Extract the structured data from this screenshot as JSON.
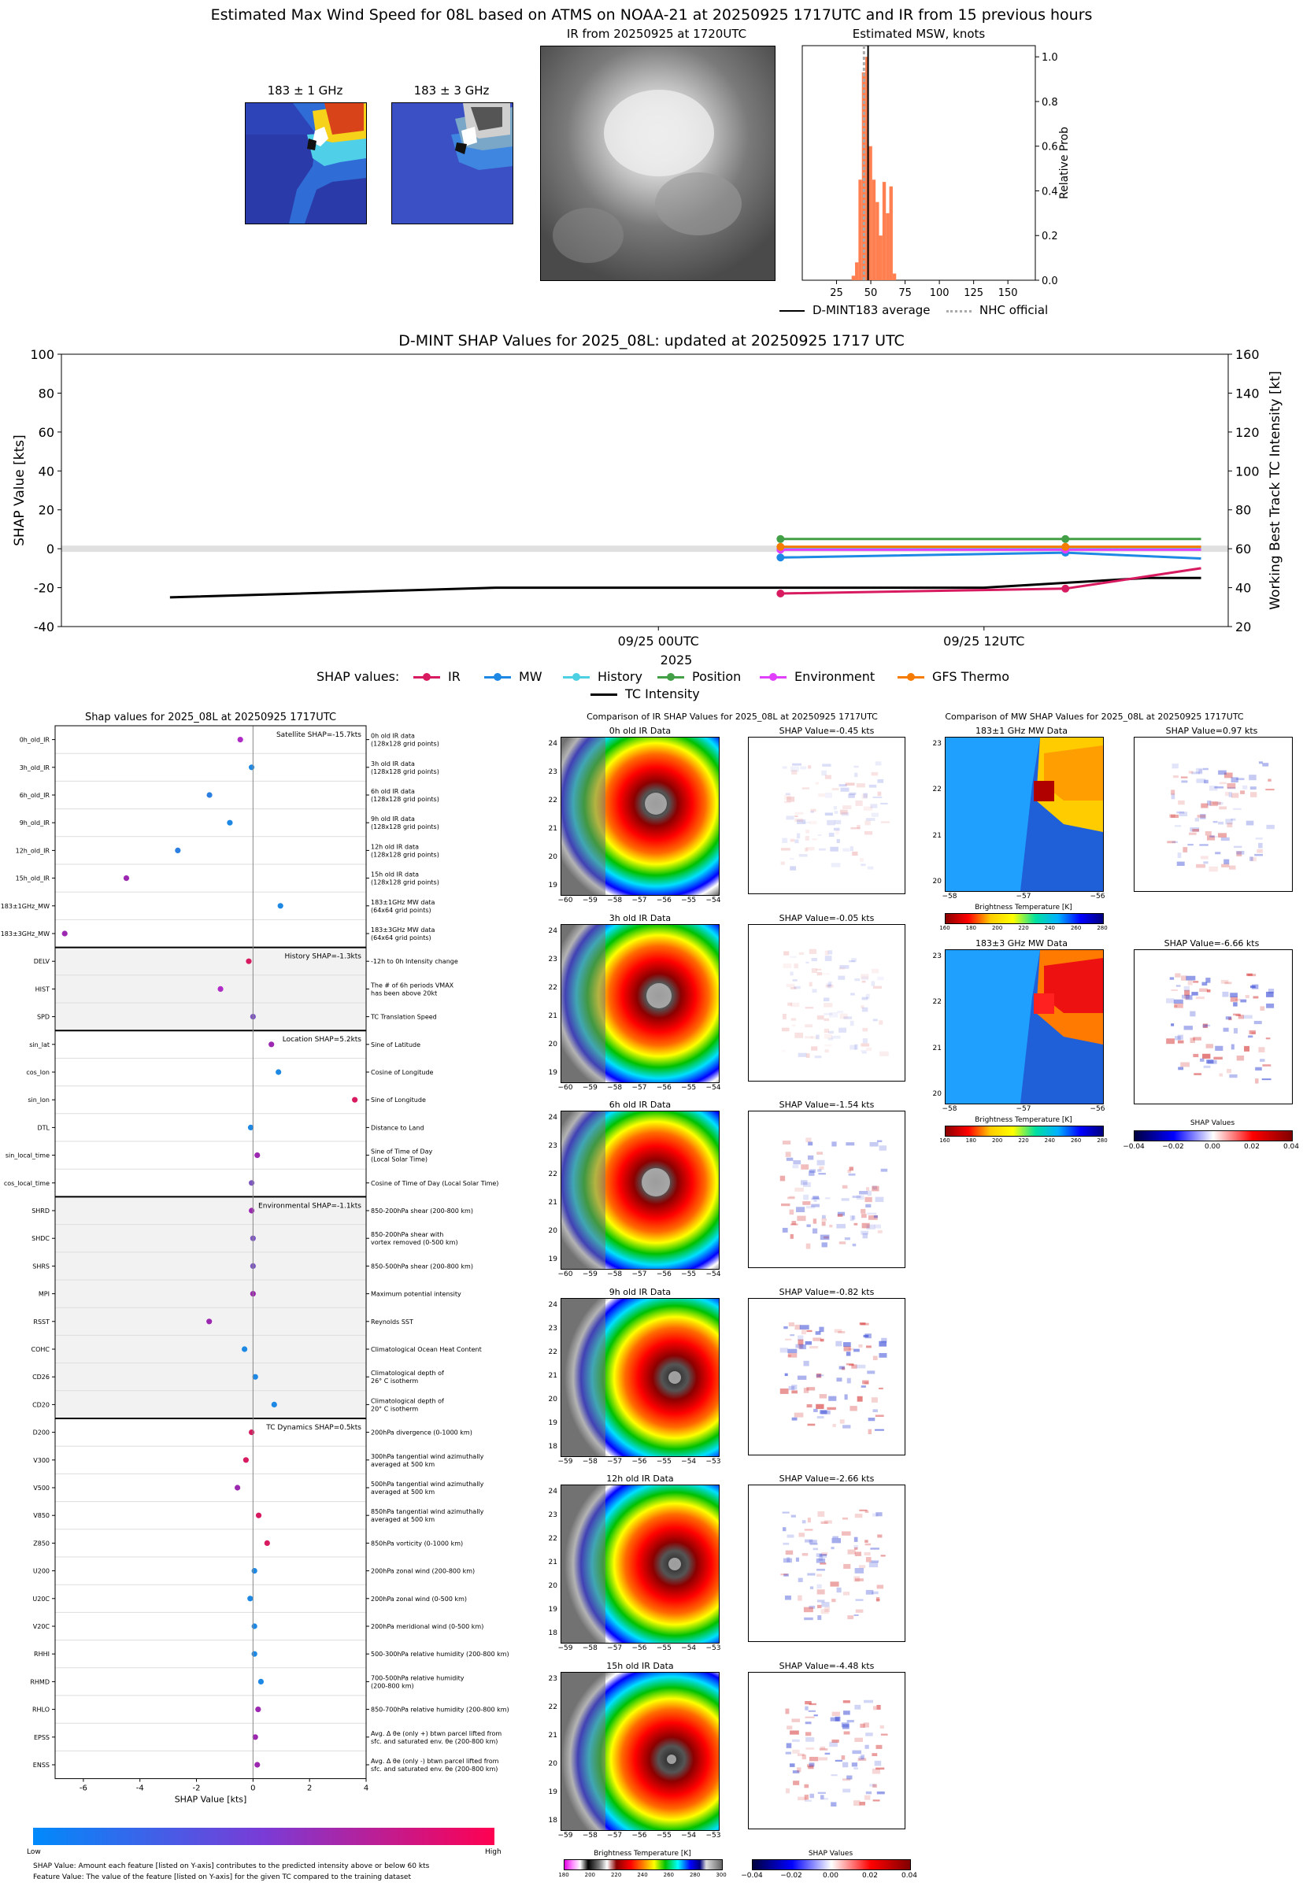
{
  "top": {
    "title": "Estimated Max Wind Speed for 08L based on ATMS on NOAA-21 at 20250925 1717UTC and IR from 15 previous hours",
    "mw1_title": "183 ± 1 GHz",
    "mw3_title": "183 ± 3 GHz",
    "ir_title": "IR from 20250925 at 1720UTC",
    "hist_title": "Estimated MSW, knots",
    "hist_ylabel": "Relative Prob",
    "hist_yticks": [
      "0.0",
      "0.2",
      "0.4",
      "0.6",
      "0.8",
      "1.0"
    ],
    "hist_xticks": [
      "25",
      "50",
      "75",
      "100",
      "125",
      "150"
    ],
    "legend_avg": "D-MINT183 average",
    "legend_nhc": "NHC official"
  },
  "chart_data": [
    {
      "type": "bar",
      "title": "Estimated MSW, knots",
      "ylabel": "Relative Prob",
      "xlim": [
        0,
        170
      ],
      "ylim": [
        0,
        1.05
      ],
      "bin_width": 2.5,
      "bins": [
        [
          36,
          0.02
        ],
        [
          38.5,
          0.08
        ],
        [
          41,
          0.45
        ],
        [
          43.5,
          0.93
        ],
        [
          46,
          1.0
        ],
        [
          48.5,
          0.6
        ],
        [
          51,
          0.45
        ],
        [
          53.5,
          0.35
        ],
        [
          56,
          0.2
        ],
        [
          58.5,
          0.44
        ],
        [
          61,
          0.3
        ],
        [
          63.5,
          0.42
        ],
        [
          66,
          0.03
        ]
      ],
      "avg_line": 48,
      "nhc_line": 45
    },
    {
      "type": "line",
      "title": "D-MINT SHAP Values for 2025_08L: updated at 20250925 1717 UTC",
      "ylabel": "SHAP Value [kts]",
      "y2label": "Working Best Track TC Intensity [kt]",
      "xlabel": "2025",
      "ylim": [
        -40,
        100
      ],
      "y2lim": [
        20,
        160
      ],
      "yticks": [
        "-40",
        "-20",
        "0",
        "20",
        "40",
        "60",
        "80",
        "100"
      ],
      "y2ticks": [
        "20",
        "40",
        "60",
        "80",
        "100",
        "120",
        "140",
        "160"
      ],
      "xticks": [
        "09/25 00UTC",
        "09/25 12UTC"
      ],
      "x_hours": [
        -18,
        20
      ],
      "legend_title": "SHAP values:",
      "series": [
        {
          "name": "IR",
          "color": "#d81b60",
          "x": [
            4.5,
            15,
            20
          ],
          "values": [
            -23,
            -20.5,
            -10
          ]
        },
        {
          "name": "MW",
          "color": "#1e88e5",
          "x": [
            4.5,
            15,
            20
          ],
          "values": [
            -4.5,
            -2,
            -5
          ]
        },
        {
          "name": "History",
          "color": "#4dd0e1",
          "x": [
            4.5,
            15,
            20
          ],
          "values": [
            0,
            0,
            0
          ]
        },
        {
          "name": "Position",
          "color": "#43a047",
          "x": [
            4.5,
            15,
            20
          ],
          "values": [
            5,
            5,
            5
          ]
        },
        {
          "name": "Environment",
          "color": "#e040fb",
          "x": [
            4.5,
            15,
            20
          ],
          "values": [
            -0.5,
            -0.5,
            -0.5
          ]
        },
        {
          "name": "GFS Thermo",
          "color": "#f57c00",
          "x": [
            4.5,
            15,
            20
          ],
          "values": [
            1,
            1,
            1
          ]
        }
      ],
      "intensity": {
        "name": "TC Intensity",
        "x": [
          -18,
          -6,
          0,
          6,
          12,
          18,
          20
        ],
        "values": [
          35,
          40,
          40,
          40,
          40,
          45,
          45
        ]
      }
    },
    {
      "type": "scatter",
      "title": "Shap values for 2025_08L at 20250925 1717UTC",
      "xlabel": "SHAP Value [kts]",
      "xlim": [
        -7,
        4
      ],
      "xticks": [
        "-6",
        "-4",
        "-2",
        "0",
        "2",
        "4"
      ],
      "groups": [
        {
          "label": "Satellite SHAP=-15.7kts",
          "shaded": false,
          "features": [
            {
              "name": "0h_old_IR",
              "desc": "0h old IR data\n(128x128 grid points)",
              "value": -0.45,
              "color": "#b02cc6"
            },
            {
              "name": "3h_old_IR",
              "desc": "3h old IR data\n(128x128 grid points)",
              "value": -0.05,
              "color": "#1e88e5"
            },
            {
              "name": "6h_old_IR",
              "desc": "6h old IR data\n(128x128 grid points)",
              "value": -1.54,
              "color": "#2a7fe0"
            },
            {
              "name": "9h_old_IR",
              "desc": "9h old IR data\n(128x128 grid points)",
              "value": -0.82,
              "color": "#1e88e5"
            },
            {
              "name": "12h_old_IR",
              "desc": "12h old IR data\n(128x128 grid points)",
              "value": -2.66,
              "color": "#2a7fe0"
            },
            {
              "name": "15h_old_IR",
              "desc": "15h old IR data\n(128x128 grid points)",
              "value": -4.48,
              "color": "#9c27b0"
            },
            {
              "name": "183±1GHz_MW",
              "desc": "183±1GHz MW data\n(64x64 grid points)",
              "value": 0.97,
              "color": "#1e88e5"
            },
            {
              "name": "183±3GHz_MW",
              "desc": "183±3GHz MW data\n(64x64 grid points)",
              "value": -6.66,
              "color": "#9c27b0"
            }
          ]
        },
        {
          "label": "History SHAP=-1.3kts",
          "shaded": true,
          "features": [
            {
              "name": "DELV",
              "desc": "-12h to 0h Intensity change",
              "value": -0.15,
              "color": "#d81b60"
            },
            {
              "name": "HIST",
              "desc": "The # of 6h periods VMAX\nhas been above 20kt",
              "value": -1.15,
              "color": "#b02cc6"
            },
            {
              "name": "SPD",
              "desc": "TC Translation Speed",
              "value": 0.0,
              "color": "#7e57c2"
            }
          ]
        },
        {
          "label": "Location SHAP=5.2kts",
          "shaded": false,
          "features": [
            {
              "name": "sin_lat",
              "desc": "Sine of Latitude",
              "value": 0.65,
              "color": "#9c27b0"
            },
            {
              "name": "cos_lon",
              "desc": "Cosine of Longitude",
              "value": 0.9,
              "color": "#1e88e5"
            },
            {
              "name": "sin_lon",
              "desc": "Sine of Longitude",
              "value": 3.6,
              "color": "#d81b60"
            },
            {
              "name": "DTL",
              "desc": "Distance to Land",
              "value": -0.08,
              "color": "#1e88e5"
            },
            {
              "name": "sin_local_time",
              "desc": "Sine of Time of Day\n(Local Solar Time)",
              "value": 0.15,
              "color": "#9c27b0"
            },
            {
              "name": "cos_local_time",
              "desc": "Cosine of Time of Day (Local Solar Time)",
              "value": -0.05,
              "color": "#7e57c2"
            }
          ]
        },
        {
          "label": "Environmental SHAP=-1.1kts",
          "shaded": true,
          "features": [
            {
              "name": "SHRD",
              "desc": "850-200hPa shear (200-800 km)",
              "value": -0.05,
              "color": "#9c27b0"
            },
            {
              "name": "SHDC",
              "desc": "850-200hPa shear with\nvortex removed (0-500 km)",
              "value": 0.0,
              "color": "#7e57c2"
            },
            {
              "name": "SHRS",
              "desc": "850-500hPa shear (200-800 km)",
              "value": 0.0,
              "color": "#7e57c2"
            },
            {
              "name": "MPI",
              "desc": "Maximum potential intensity",
              "value": 0.0,
              "color": "#9c27b0"
            },
            {
              "name": "RSST",
              "desc": "Reynolds SST",
              "value": -1.55,
              "color": "#9c27b0"
            },
            {
              "name": "COHC",
              "desc": "Climatological Ocean Heat Content",
              "value": -0.3,
              "color": "#1e88e5"
            },
            {
              "name": "CD26",
              "desc": "Climatological depth of\n26° C isotherm",
              "value": 0.08,
              "color": "#1e88e5"
            },
            {
              "name": "CD20",
              "desc": "Climatological depth of\n20° C isotherm",
              "value": 0.75,
              "color": "#1e88e5"
            }
          ]
        },
        {
          "label": "TC Dynamics SHAP=0.5kts",
          "shaded": false,
          "features": [
            {
              "name": "D200",
              "desc": "200hPa divergence (0-1000 km)",
              "value": -0.05,
              "color": "#d81b60"
            },
            {
              "name": "V300",
              "desc": "300hPa tangential wind azimuthally\naveraged at 500 km",
              "value": -0.25,
              "color": "#d81b60"
            },
            {
              "name": "V500",
              "desc": "500hPa tangential wind azimuthally\naveraged at 500 km",
              "value": -0.55,
              "color": "#9c27b0"
            },
            {
              "name": "V850",
              "desc": "850hPa tangential wind azimuthally\naveraged at 500 km",
              "value": 0.2,
              "color": "#d81b60"
            },
            {
              "name": "Z850",
              "desc": "850hPa vorticity (0-1000 km)",
              "value": 0.5,
              "color": "#d81b60"
            },
            {
              "name": "U200",
              "desc": "200hPa zonal wind (200-800 km)",
              "value": 0.05,
              "color": "#1e88e5"
            },
            {
              "name": "U20C",
              "desc": "200hPa zonal wind (0-500 km)",
              "value": -0.1,
              "color": "#1e88e5"
            },
            {
              "name": "V20C",
              "desc": "200hPa meridional wind (0-500 km)",
              "value": 0.05,
              "color": "#1e88e5"
            },
            {
              "name": "RHHI",
              "desc": "500-300hPa relative humidity (200-800 km)",
              "value": 0.05,
              "color": "#1e88e5"
            },
            {
              "name": "RHMD",
              "desc": "700-500hPa relative humidity\n(200-800 km)",
              "value": 0.28,
              "color": "#1e88e5"
            },
            {
              "name": "RHLO",
              "desc": "850-700hPa relative humidity (200-800 km)",
              "value": 0.18,
              "color": "#9c27b0"
            },
            {
              "name": "EPSS",
              "desc": "Avg. Δ θe (only +) btwn parcel lifted from\nsfc. and saturated env. θe (200-800 km)",
              "value": 0.08,
              "color": "#9c27b0"
            },
            {
              "name": "ENSS",
              "desc": "Avg. Δ θe (only -) btwn parcel lifted from\nsfc. and saturated env. θe (200-800 km)",
              "value": 0.15,
              "color": "#9c27b0"
            }
          ]
        }
      ]
    }
  ],
  "shap_colorbar": {
    "low": "Low",
    "high": "High"
  },
  "footnote1": "SHAP Value: Amount each feature [listed on Y-axis] contributes to the predicted intensity above or below 60 kts",
  "footnote2": "Feature Value: The value of the feature [listed on Y-axis] for the given TC compared to the training dataset",
  "ir_compare": {
    "title": "Comparison of IR SHAP Values for 2025_08L at 20250925 1717UTC",
    "rows": [
      {
        "img_title": "0h old IR Data",
        "shap_title": "SHAP Value=-0.45 kts",
        "yticks": [
          "24",
          "23",
          "22",
          "21",
          "20",
          "19"
        ],
        "xticks": [
          "−60",
          "−59",
          "−58",
          "−57",
          "−56",
          "−55",
          "−54"
        ]
      },
      {
        "img_title": "3h old IR Data",
        "shap_title": "SHAP Value=-0.05 kts",
        "yticks": [
          "24",
          "23",
          "22",
          "21",
          "20",
          "19"
        ],
        "xticks": [
          "−60",
          "−59",
          "−58",
          "−57",
          "−56",
          "−55",
          "−54"
        ]
      },
      {
        "img_title": "6h old IR Data",
        "shap_title": "SHAP Value=-1.54 kts",
        "yticks": [
          "24",
          "23",
          "22",
          "21",
          "20",
          "19"
        ],
        "xticks": [
          "−60",
          "−59",
          "−58",
          "−57",
          "−56",
          "−55",
          "−54"
        ]
      },
      {
        "img_title": "9h old IR Data",
        "shap_title": "SHAP Value=-0.82 kts",
        "yticks": [
          "24",
          "23",
          "22",
          "21",
          "20",
          "19",
          "18"
        ],
        "xticks": [
          "−59",
          "−58",
          "−57",
          "−56",
          "−55",
          "−54",
          "−53"
        ]
      },
      {
        "img_title": "12h old IR Data",
        "shap_title": "SHAP Value=-2.66 kts",
        "yticks": [
          "24",
          "23",
          "22",
          "21",
          "20",
          "19",
          "18"
        ],
        "xticks": [
          "−59",
          "−58",
          "−57",
          "−56",
          "−55",
          "−54",
          "−53"
        ]
      },
      {
        "img_title": "15h old IR Data",
        "shap_title": "SHAP Value=-4.48 kts",
        "yticks": [
          "23",
          "22",
          "21",
          "20",
          "19",
          "18"
        ],
        "xticks": [
          "−59",
          "−58",
          "−57",
          "−56",
          "−55",
          "−54",
          "−53"
        ]
      }
    ],
    "bt_label": "Brightness Temperature [K]",
    "bt_ticks": [
      "180",
      "200",
      "220",
      "240",
      "260",
      "280",
      "300"
    ],
    "sv_label": "SHAP Values",
    "sv_ticks": [
      "−0.04",
      "−0.02",
      "0.00",
      "0.02",
      "0.04"
    ]
  },
  "mw_compare": {
    "title": "Comparison of MW SHAP Values for 2025_08L at 20250925 1717UTC",
    "rows": [
      {
        "img_title": "183±1 GHz MW Data",
        "shap_title": "SHAP Value=0.97 kts",
        "yticks": [
          "23",
          "22",
          "21",
          "20"
        ],
        "xticks": [
          "−58",
          "−57",
          "−56"
        ]
      },
      {
        "img_title": "183±3 GHz MW Data",
        "shap_title": "SHAP Value=-6.66 kts",
        "yticks": [
          "23",
          "22",
          "21",
          "20"
        ],
        "xticks": [
          "−58",
          "−57",
          "−56"
        ]
      }
    ],
    "bt_label": "Brightness Temperature [K]",
    "bt_ticks": [
      "160",
      "180",
      "200",
      "220",
      "240",
      "260",
      "280"
    ],
    "sv_label": "SHAP Values",
    "sv_ticks": [
      "−0.04",
      "−0.02",
      "0.00",
      "0.02",
      "0.04"
    ]
  },
  "colors": {
    "ir": "#d81b60",
    "mw": "#1e88e5",
    "history": "#4dd0e1",
    "position": "#43a047",
    "environment": "#e040fb",
    "gfs": "#f57c00",
    "hist_bar": "#ff7f50"
  }
}
